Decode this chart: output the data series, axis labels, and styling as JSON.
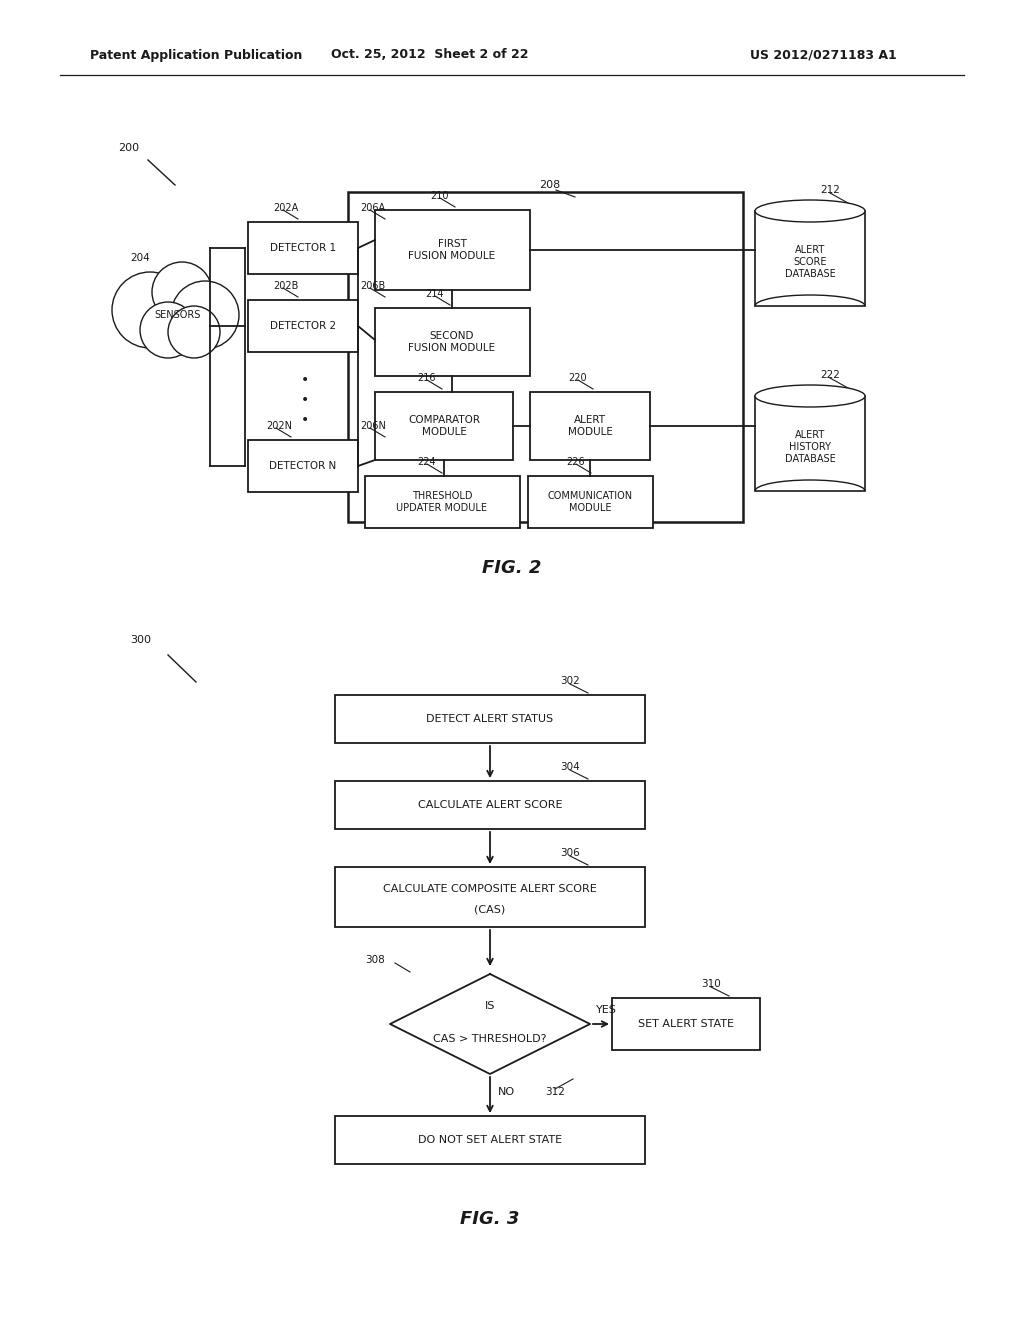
{
  "bg_color": "#ffffff",
  "header_left": "Patent Application Publication",
  "header_center": "Oct. 25, 2012  Sheet 2 of 22",
  "header_right": "US 2012/0271183 A1",
  "fig2_label": "FIG. 2",
  "fig3_label": "FIG. 3",
  "lc": "#1a1a1a",
  "blw": 1.3,
  "olw": 1.8,
  "fig2": {
    "ref": "200",
    "outer_ref": "208",
    "sensors_ref": "204",
    "d1_label": "DETECTOR 1",
    "d1_ref": "202A",
    "d1_line": "206A",
    "d2_label": "DETECTOR 2",
    "d2_ref": "202B",
    "d2_line": "206B",
    "dN_label": "DETECTOR N",
    "dN_ref": "202N",
    "dN_line": "206N",
    "ff_label": "FIRST\nFUSION MODULE",
    "ff_ref": "210",
    "sf_label": "SECOND\nFUSION MODULE",
    "sf_ref": "214",
    "cm_label": "COMPARATOR\nMODULE",
    "cm_ref": "216",
    "am_label": "ALERT\nMODULE",
    "am_ref": "220",
    "tu_label": "THRESHOLD\nUPDATER MODULE",
    "tu_ref": "224",
    "co_label": "COMMUNICATION\nMODULE",
    "co_ref": "226",
    "db1_label": "ALERT\nSCORE\nDATABASE",
    "db1_ref": "212",
    "db2_label": "ALERT\nHISTORY\nDATABASE",
    "db2_ref": "222"
  },
  "fig3": {
    "ref": "300",
    "b1_label": "DETECT ALERT STATUS",
    "b1_ref": "302",
    "b2_label": "CALCULATE ALERT SCORE",
    "b2_ref": "304",
    "b3_label": "CALCULATE COMPOSITE ALERT SCORE\n(CAS)",
    "b3_ref": "306",
    "dia_label1": "IS",
    "dia_label2": "CAS > THRESHOLD?",
    "dia_ref": "308",
    "sa_label": "SET ALERT STATE",
    "sa_ref": "310",
    "na_label": "DO NOT SET ALERT STATE",
    "na_ref": "312",
    "yes_label": "YES",
    "no_label": "NO"
  }
}
